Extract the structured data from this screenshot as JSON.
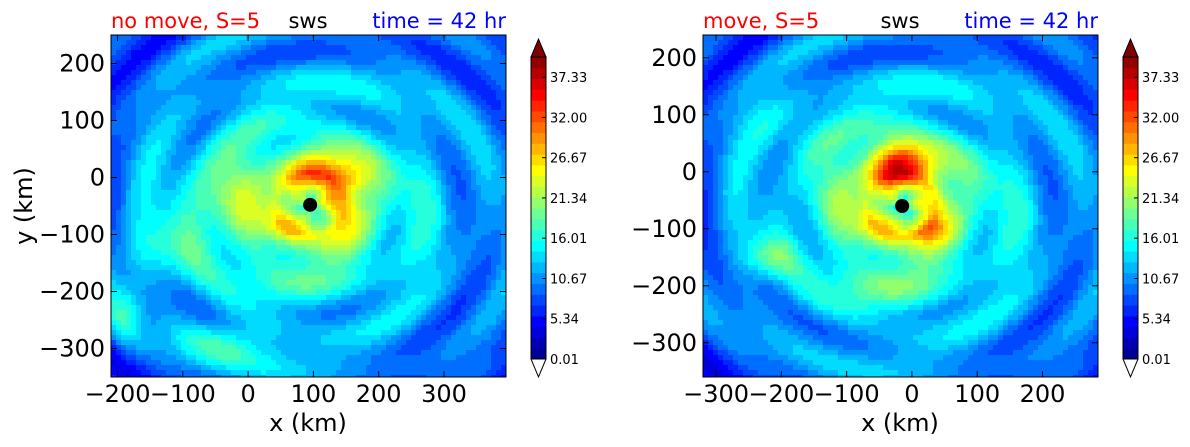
{
  "colors": {
    "red_title": "#ff0000",
    "blue_title": "#0000ff",
    "marker": "#000000",
    "colormap": [
      "#000080",
      "#0000ff",
      "#0080ff",
      "#00ffff",
      "#80ff80",
      "#ffff00",
      "#ff8000",
      "#ff0000",
      "#800000"
    ]
  },
  "colorbar": {
    "ticks": [
      "37.33",
      "32.00",
      "26.67",
      "21.34",
      "16.01",
      "10.67",
      "5.34",
      "0.01"
    ],
    "tick_values": [
      37.33,
      32.0,
      26.67,
      21.34,
      16.01,
      10.67,
      5.34,
      0.01
    ],
    "levels": 28,
    "extend": "both"
  },
  "chart_data": [
    {
      "type": "heatmap",
      "title_left": "no move, S=5",
      "title_center": "sws",
      "title_right": "time = 42 hr",
      "xlabel": "x (km)",
      "ylabel": "y (km)",
      "xlim": [
        -210,
        395
      ],
      "ylim": [
        -350,
        250
      ],
      "xticks": [
        -200,
        -100,
        0,
        100,
        200,
        300
      ],
      "yticks": [
        200,
        100,
        0,
        -100,
        -200,
        -300
      ],
      "xtick_labels": [
        "−200",
        "−100",
        "0",
        "100",
        "200",
        "300"
      ],
      "ytick_labels": [
        "200",
        "100",
        "0",
        "−100",
        "−200",
        "−300"
      ],
      "center_marker": {
        "x": 95,
        "y": -48
      },
      "max_wind": {
        "x": 120,
        "y": -5,
        "value": 32
      },
      "features": [
        {
          "x": -60,
          "y": -40,
          "sx": 40,
          "sy": 60,
          "amp": 5
        },
        {
          "x": -150,
          "y": -130,
          "sx": 60,
          "sy": 40,
          "amp": 4
        },
        {
          "x": -30,
          "y": -290,
          "sx": 60,
          "sy": 30,
          "amp": 6
        },
        {
          "x": -190,
          "y": -240,
          "sx": 20,
          "sy": 40,
          "amp": 6
        },
        {
          "x": 160,
          "y": 0,
          "sx": 25,
          "sy": 20,
          "amp": 5
        }
      ]
    },
    {
      "type": "heatmap",
      "title_left": "move, S=5",
      "title_center": "sws",
      "title_right": "time = 42 hr",
      "xlabel": "x (km)",
      "ylabel": "",
      "xlim": [
        -320,
        285
      ],
      "ylim": [
        -360,
        240
      ],
      "xticks": [
        -300,
        -200,
        -100,
        0,
        100,
        200
      ],
      "yticks": [
        200,
        100,
        0,
        -100,
        -200,
        -300
      ],
      "xtick_labels": [
        "−300",
        "−200",
        "−100",
        "0",
        "100",
        "200"
      ],
      "ytick_labels": [
        "200",
        "100",
        "0",
        "−100",
        "−200",
        "−300"
      ],
      "center_marker": {
        "x": -15,
        "y": -60
      },
      "max_wind": {
        "x": -20,
        "y": 20,
        "value": 38
      },
      "features": [
        {
          "x": -220,
          "y": -150,
          "sx": 30,
          "sy": 25,
          "amp": 6
        },
        {
          "x": 20,
          "y": -100,
          "sx": 20,
          "sy": 15,
          "amp": 7
        },
        {
          "x": -200,
          "y": 80,
          "sx": 50,
          "sy": 40,
          "amp": 3
        },
        {
          "x": -50,
          "y": -230,
          "sx": 80,
          "sy": 30,
          "amp": 3
        }
      ]
    }
  ]
}
